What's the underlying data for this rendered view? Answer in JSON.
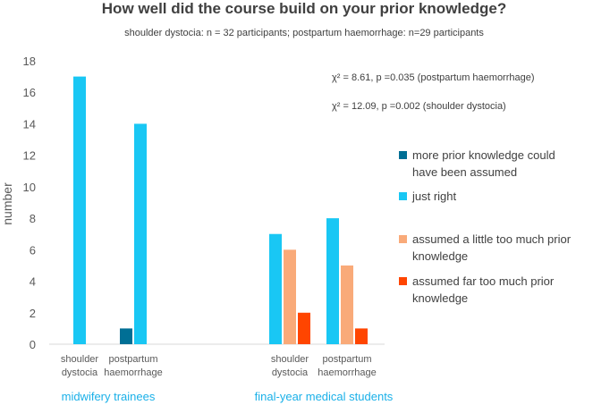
{
  "chart_data": {
    "type": "bar",
    "title": "How well did the course build on your prior knowledge?",
    "subtitle": "shoulder dystocia: n = 32 participants; postpartum haemorrhage: n=29 participants",
    "ylabel": "number",
    "ylim": [
      0,
      18
    ],
    "yticks": [
      0,
      2,
      4,
      6,
      8,
      10,
      12,
      14,
      16,
      18
    ],
    "grid": false,
    "legend_position": "right",
    "groups": [
      {
        "label": "midwifery trainees",
        "categories": [
          "shoulder dystocia",
          "postpartum haemorrhage"
        ]
      },
      {
        "label": "final-year medical students",
        "categories": [
          "shoulder dystocia",
          "postpartum haemorrhage"
        ]
      }
    ],
    "category_labels": [
      [
        "shoulder",
        "dystocia"
      ],
      [
        "postpartum",
        "haemorrhage"
      ],
      [
        "shoulder",
        "dystocia"
      ],
      [
        "postpartum",
        "haemorrhage"
      ]
    ],
    "series": [
      {
        "name": "more prior knowledge could have been assumed",
        "legend_lines": [
          "more prior knowledge could",
          "have been assumed"
        ],
        "color": "#006f95",
        "values": [
          0,
          1,
          0,
          0
        ]
      },
      {
        "name": "just right",
        "legend_lines": [
          "just right"
        ],
        "color": "#19c7f4",
        "values": [
          17,
          14,
          7,
          8
        ]
      },
      {
        "name": "assumed a little too much prior knowledge",
        "legend_lines": [
          "assumed a little too much prior",
          "knowledge"
        ],
        "color": "#f9aa79",
        "values": [
          0,
          0,
          6,
          5
        ]
      },
      {
        "name": "assumed far too much prior knowledge",
        "legend_lines": [
          "assumed far too much prior",
          "knowledge"
        ],
        "color": "#ff4500",
        "values": [
          0,
          0,
          2,
          1
        ]
      }
    ],
    "annotations": [
      "χ² = 8.61,  p =0.035 (postpartum  haemorrhage)",
      "χ² = 12.09, p =0.002 (shoulder dystocia)"
    ]
  }
}
